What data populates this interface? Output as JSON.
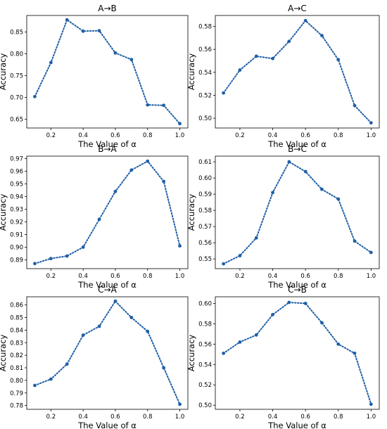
{
  "chart_data": [
    {
      "type": "line",
      "title": "A→B",
      "xlabel": "The Value of α",
      "ylabel": "Accuracy",
      "x": [
        0.1,
        0.2,
        0.3,
        0.4,
        0.5,
        0.6,
        0.7,
        0.8,
        0.9,
        1.0
      ],
      "series": [
        {
          "values": [
            0.702,
            0.78,
            0.878,
            0.852,
            0.853,
            0.802,
            0.787,
            0.683,
            0.682,
            0.64
          ]
        }
      ],
      "xlim": [
        0.05,
        1.05
      ],
      "ylim": [
        0.63,
        0.888
      ],
      "xticks": [
        "0.2",
        "0.4",
        "0.6",
        "0.8",
        "1.0"
      ],
      "yticks": [
        "0.65",
        "0.70",
        "0.75",
        "0.80",
        "0.85"
      ],
      "color": "#1f5fa6",
      "line_style": "dotted",
      "marker": "circle",
      "grid": false
    },
    {
      "type": "line",
      "title": "A→C",
      "xlabel": "The Value of α",
      "ylabel": "Accuracy",
      "x": [
        0.1,
        0.2,
        0.3,
        0.4,
        0.5,
        0.6,
        0.7,
        0.8,
        0.9,
        1.0
      ],
      "series": [
        {
          "values": [
            0.522,
            0.542,
            0.554,
            0.552,
            0.567,
            0.585,
            0.572,
            0.551,
            0.511,
            0.496
          ]
        }
      ],
      "xlim": [
        0.05,
        1.05
      ],
      "ylim": [
        0.4915,
        0.5895
      ],
      "xticks": [
        "0.2",
        "0.4",
        "0.6",
        "0.8",
        "1.0"
      ],
      "yticks": [
        "0.50",
        "0.52",
        "0.54",
        "0.56",
        "0.58"
      ],
      "color": "#1f5fa6",
      "line_style": "dotted",
      "marker": "circle",
      "grid": false
    },
    {
      "type": "line",
      "title": "B→A",
      "xlabel": "The Value of α",
      "ylabel": "Accuracy",
      "x": [
        0.1,
        0.2,
        0.3,
        0.4,
        0.5,
        0.6,
        0.7,
        0.8,
        0.9,
        1.0
      ],
      "series": [
        {
          "values": [
            0.887,
            0.891,
            0.893,
            0.9,
            0.922,
            0.944,
            0.961,
            0.968,
            0.952,
            0.901
          ]
        }
      ],
      "xlim": [
        0.05,
        1.05
      ],
      "ylim": [
        0.883,
        0.972
      ],
      "xticks": [
        "0.2",
        "0.4",
        "0.6",
        "0.8",
        "1.0"
      ],
      "yticks": [
        "0.89",
        "0.90",
        "0.91",
        "0.92",
        "0.93",
        "0.94",
        "0.95",
        "0.96",
        "0.97"
      ],
      "color": "#1f5fa6",
      "line_style": "dotted",
      "marker": "circle",
      "grid": false
    },
    {
      "type": "line",
      "title": "B→C",
      "xlabel": "The Value of α",
      "ylabel": "Accuracy",
      "x": [
        0.1,
        0.2,
        0.3,
        0.4,
        0.5,
        0.6,
        0.7,
        0.8,
        0.9,
        1.0
      ],
      "series": [
        {
          "values": [
            0.547,
            0.552,
            0.563,
            0.591,
            0.61,
            0.604,
            0.593,
            0.587,
            0.561,
            0.554
          ]
        }
      ],
      "xlim": [
        0.05,
        1.05
      ],
      "ylim": [
        0.544,
        0.6135
      ],
      "xticks": [
        "0.2",
        "0.4",
        "0.6",
        "0.8",
        "1.0"
      ],
      "yticks": [
        "0.55",
        "0.56",
        "0.57",
        "0.58",
        "0.59",
        "0.60",
        "0.61"
      ],
      "color": "#1f5fa6",
      "line_style": "dotted",
      "marker": "circle",
      "grid": false
    },
    {
      "type": "line",
      "title": "C→A",
      "xlabel": "The Value of α",
      "ylabel": "Accuracy",
      "x": [
        0.1,
        0.2,
        0.3,
        0.4,
        0.5,
        0.6,
        0.7,
        0.8,
        0.9,
        1.0
      ],
      "series": [
        {
          "values": [
            0.796,
            0.801,
            0.813,
            0.836,
            0.843,
            0.863,
            0.85,
            0.839,
            0.81,
            0.781
          ]
        }
      ],
      "xlim": [
        0.05,
        1.05
      ],
      "ylim": [
        0.777,
        0.8665
      ],
      "xticks": [
        "0.2",
        "0.4",
        "0.6",
        "0.8",
        "1.0"
      ],
      "yticks": [
        "0.78",
        "0.79",
        "0.80",
        "0.81",
        "0.82",
        "0.83",
        "0.84",
        "0.85",
        "0.86"
      ],
      "color": "#1f5fa6",
      "line_style": "dotted",
      "marker": "circle",
      "grid": false
    },
    {
      "type": "line",
      "title": "C→B",
      "xlabel": "The Value of α",
      "ylabel": "Accuracy",
      "x": [
        0.1,
        0.2,
        0.3,
        0.4,
        0.5,
        0.6,
        0.7,
        0.8,
        0.9,
        1.0
      ],
      "series": [
        {
          "values": [
            0.551,
            0.562,
            0.569,
            0.589,
            0.601,
            0.6,
            0.581,
            0.56,
            0.551,
            0.501
          ]
        }
      ],
      "xlim": [
        0.05,
        1.05
      ],
      "ylim": [
        0.496,
        0.6065
      ],
      "xticks": [
        "0.2",
        "0.4",
        "0.6",
        "0.8",
        "1.0"
      ],
      "yticks": [
        "0.50",
        "0.52",
        "0.54",
        "0.56",
        "0.58",
        "0.60"
      ],
      "color": "#1f5fa6",
      "line_style": "dotted",
      "marker": "circle",
      "grid": false
    }
  ]
}
